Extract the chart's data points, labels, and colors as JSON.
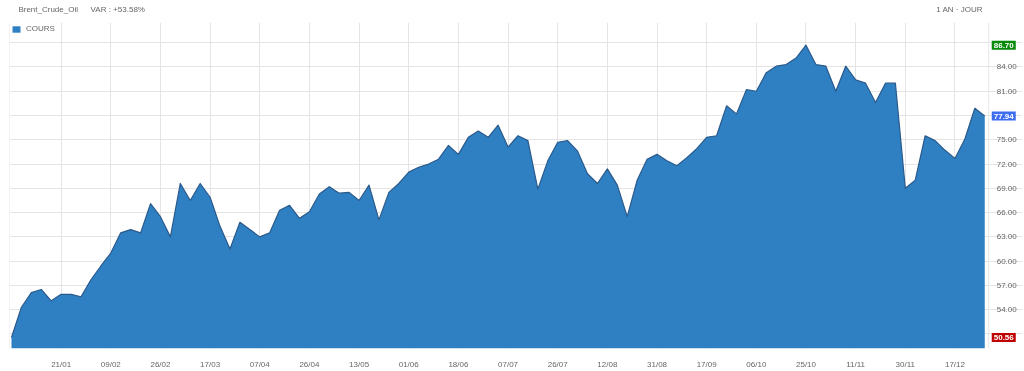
{
  "chart_data": {
    "type": "area",
    "title": "Brent_Crude_Oil",
    "subtitle": "VAR : +53.58%",
    "annotations": [
      "1 AN · JOUR",
      {
        "text": "86.70",
        "y": 86.7
      },
      {
        "text": "77.94",
        "y": 77.94
      },
      {
        "text": "50.56",
        "y": 50.56
      }
    ],
    "categories": [
      null,
      null,
      null,
      null,
      null,
      "21/01",
      null,
      null,
      null,
      null,
      "09/02",
      null,
      null,
      null,
      null,
      "26/02",
      null,
      null,
      null,
      null,
      "17/03",
      null,
      null,
      null,
      null,
      "07/04",
      null,
      null,
      null,
      null,
      "26/04",
      null,
      null,
      null,
      null,
      "13/05",
      null,
      null,
      null,
      null,
      "01/06",
      null,
      null,
      null,
      null,
      "18/06",
      null,
      null,
      null,
      null,
      "07/07",
      null,
      null,
      null,
      null,
      "26/07",
      null,
      null,
      null,
      null,
      "12/08",
      null,
      null,
      null,
      null,
      "31/08",
      null,
      null,
      null,
      null,
      "17/09",
      null,
      null,
      null,
      null,
      "06/10",
      null,
      null,
      null,
      null,
      "25/10",
      null,
      null,
      null,
      null,
      "11/11",
      null,
      null,
      null,
      null,
      "30/11",
      null,
      null,
      null,
      null,
      "17/12",
      null,
      null,
      null
    ],
    "series": [
      {
        "name": "COURS",
        "color": "#2f80c2",
        "values": [
          50.56,
          54.3,
          56.1,
          56.5,
          55.1,
          55.9,
          55.9,
          55.6,
          57.7,
          59.4,
          61.0,
          63.5,
          63.9,
          63.5,
          67.1,
          65.5,
          63.0,
          69.6,
          67.5,
          69.6,
          67.9,
          64.3,
          61.5,
          64.8,
          63.9,
          63.0,
          63.5,
          66.3,
          66.9,
          65.3,
          66.1,
          68.3,
          69.2,
          68.4,
          68.5,
          67.5,
          69.4,
          65.1,
          68.5,
          69.6,
          71.0,
          71.6,
          72.0,
          72.6,
          74.3,
          73.2,
          75.3,
          76.1,
          75.3,
          76.8,
          74.1,
          75.5,
          74.9,
          68.9,
          72.4,
          74.7,
          74.9,
          73.6,
          70.8,
          69.6,
          71.4,
          69.4,
          65.5,
          70.0,
          72.6,
          73.2,
          72.4,
          71.8,
          72.8,
          73.9,
          75.3,
          75.5,
          79.2,
          78.2,
          81.2,
          81.0,
          83.3,
          84.1,
          84.3,
          85.1,
          86.7,
          84.3,
          84.1,
          81.0,
          84.1,
          82.4,
          82.0,
          79.6,
          82.0,
          82.0,
          69.0,
          70.0,
          75.5,
          74.9,
          73.7,
          72.7,
          75.1,
          78.9,
          77.94
        ]
      }
    ],
    "ylim": [
      49.2,
      89.5
    ],
    "yticks": [
      {
        "value": 51,
        "label": null
      },
      {
        "value": 54,
        "label": "54.00"
      },
      {
        "value": 57,
        "label": "57.00"
      },
      {
        "value": 60,
        "label": "60.00"
      },
      {
        "value": 63,
        "label": "63.00"
      },
      {
        "value": 66,
        "label": "66.00"
      },
      {
        "value": 69,
        "label": "69.00"
      },
      {
        "value": 72,
        "label": "72.00"
      },
      {
        "value": 75,
        "label": "75.00"
      },
      {
        "value": 78,
        "label": null
      },
      {
        "value": 81,
        "label": "81.00"
      },
      {
        "value": 84,
        "label": "84.00"
      },
      {
        "value": 87,
        "label": null
      }
    ],
    "grid": true,
    "legend": "top left"
  }
}
